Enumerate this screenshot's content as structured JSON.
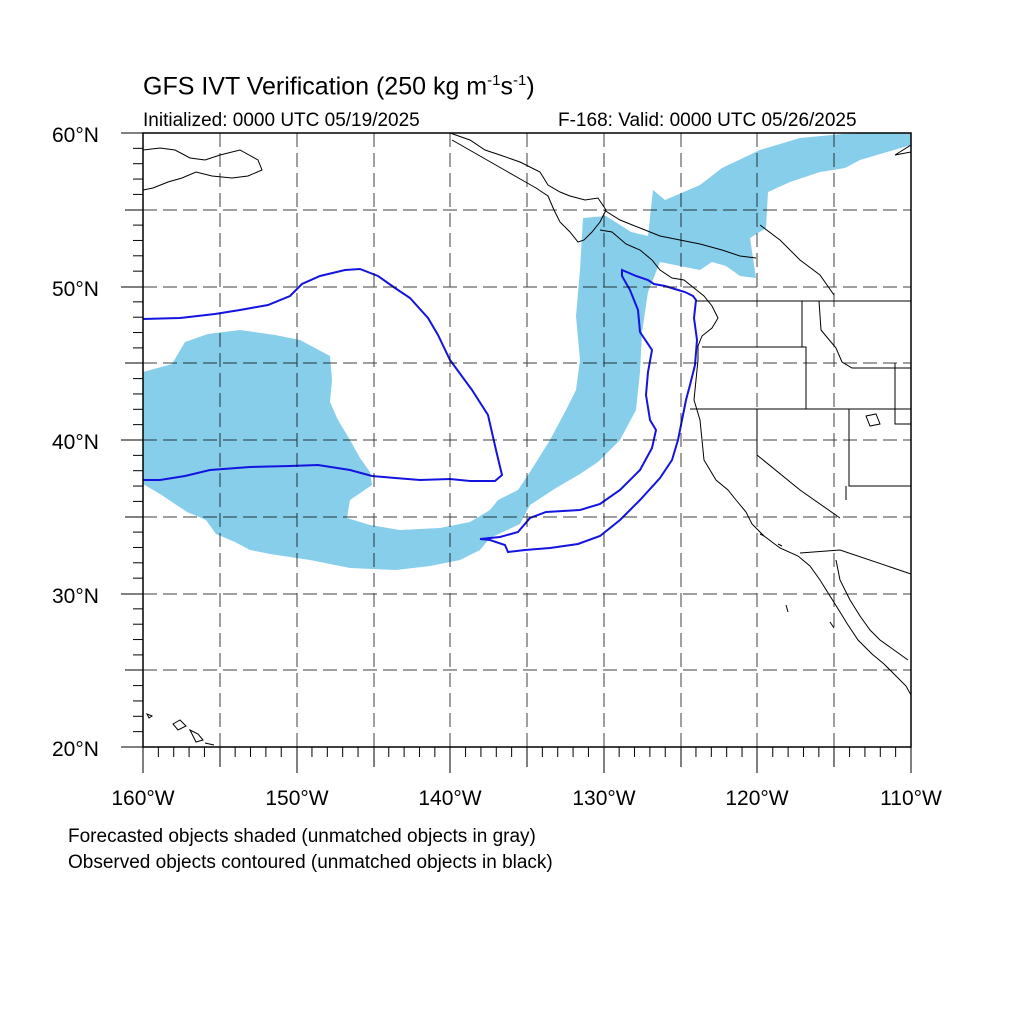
{
  "title": {
    "main": "GFS IVT Verification (250 kg m",
    "exp1": "-1",
    "mid": "s",
    "exp2": "-1",
    "end": ")"
  },
  "initialized": "Initialized: 0000 UTC 05/19/2025",
  "valid": "F-168: Valid: 0000 UTC 05/26/2025",
  "lat_labels": [
    "60°N",
    "50°N",
    "40°N",
    "30°N",
    "20°N"
  ],
  "lon_labels": [
    "160°W",
    "150°W",
    "140°W",
    "130°W",
    "120°W",
    "110°W"
  ],
  "notes": [
    "Forecasted objects shaded (unmatched objects in gray)",
    "Observed objects contoured (unmatched objects in black)"
  ],
  "colors": {
    "forecast_fill": "#87ceeb",
    "observed_contour": "#1414e0",
    "coastline": "#000000",
    "grid": "#000000"
  },
  "map_extent": {
    "lon": [
      -160,
      -110
    ],
    "lat": [
      20,
      60
    ]
  }
}
